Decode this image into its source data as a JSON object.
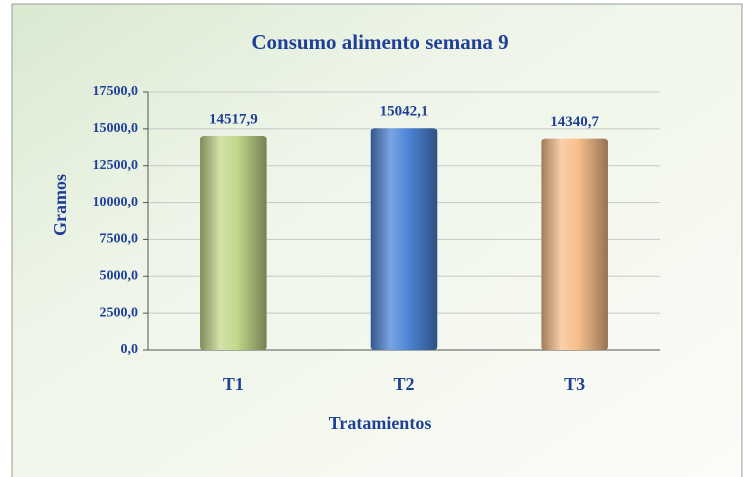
{
  "chart_data": {
    "type": "bar",
    "title": "Consumo alimento semana 9",
    "x_label": "Tratamientos",
    "y_label": "Gramos",
    "categories": [
      "T1",
      "T2",
      "T3"
    ],
    "values": [
      14517.9,
      15042.1,
      14340.7
    ],
    "value_labels": [
      "14517,9",
      "15042,1",
      "14340,7"
    ],
    "colors": [
      "#c3d88c",
      "#4f86d8",
      "#f8bf8c"
    ],
    "ylim": [
      0,
      17500
    ],
    "yticks": [
      {
        "value": 0,
        "label": "0,0"
      },
      {
        "value": 2500,
        "label": "2500,0"
      },
      {
        "value": 5000,
        "label": "5000,0"
      },
      {
        "value": 7500,
        "label": "7500,0"
      },
      {
        "value": 10000,
        "label": "10000,0"
      },
      {
        "value": 12500,
        "label": "12500,0"
      },
      {
        "value": 15000,
        "label": "15000,0"
      },
      {
        "value": 17500,
        "label": "17500,0"
      }
    ],
    "grid": true
  }
}
